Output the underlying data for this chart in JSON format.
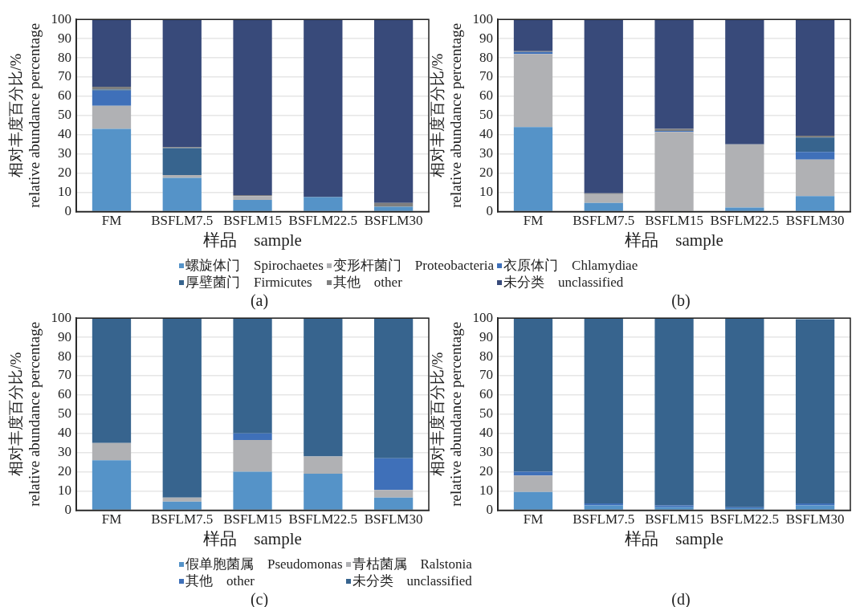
{
  "chart_data": [
    {
      "type": "bar",
      "stacked": true,
      "xlabel": "样品    sample",
      "ylabel": "相对丰度百分比/%\nrelative abundance percentage",
      "categories": [
        "FM",
        "BSFLM7.5",
        "BSFLM15",
        "BSFLM22.5",
        "BSFLM30"
      ],
      "ylim": [
        0,
        100
      ],
      "yticks": [
        0,
        10,
        20,
        30,
        40,
        50,
        60,
        70,
        80,
        90,
        100
      ],
      "grid": "y",
      "legend": "bottom",
      "annotations": [
        "(a)"
      ],
      "series": [
        {
          "name": "螺旋体门    Spirochaetes",
          "color": "#5593c8",
          "values": [
            43,
            17.5,
            6,
            7.5,
            2.5
          ]
        },
        {
          "name": "变形杆菌门    Proteobacteria",
          "color": "#b0b1b4",
          "values": [
            12,
            1.5,
            2,
            null,
            null
          ]
        },
        {
          "name": "衣原体门    Chlamydiae",
          "color": "#3f70b9",
          "values": [
            8,
            0,
            0,
            0,
            0
          ]
        },
        {
          "name": "厚壁菌门    Firmicutes",
          "color": "#37648e",
          "values": [
            0.5,
            14,
            0,
            0,
            0
          ]
        },
        {
          "name": "其他    other",
          "color": "#7f7f7f",
          "values": [
            1.5,
            0.5,
            0.5,
            0,
            2
          ]
        },
        {
          "name": "未分类    unclassified",
          "color": "#384a7a",
          "values": [
            35,
            66.5,
            91.5,
            92.5,
            95.5
          ]
        }
      ]
    },
    {
      "type": "bar",
      "stacked": true,
      "xlabel": "样品    sample",
      "ylabel": "相对丰度百分比/%\nrelative abundance percentage",
      "categories": [
        "FM",
        "BSFLM7.5",
        "BSFLM15",
        "BSFLM22.5",
        "BSFLM30"
      ],
      "ylim": [
        0,
        100
      ],
      "yticks": [
        0,
        10,
        20,
        30,
        40,
        50,
        60,
        70,
        80,
        90,
        100
      ],
      "grid": "y",
      "annotations": [
        "(b)"
      ],
      "series": [
        {
          "color": "#5593c8",
          "values": [
            44,
            4.5,
            0,
            2,
            8
          ]
        },
        {
          "color": "#b0b1b4",
          "values": [
            38,
            4.5,
            41.5,
            33,
            19
          ]
        },
        {
          "color": "#3f70b9",
          "values": [
            1,
            0,
            0.5,
            0,
            4
          ]
        },
        {
          "color": "#37648e",
          "values": [
            0,
            0,
            0,
            0,
            7.5
          ]
        },
        {
          "color": "#7f7f7f",
          "values": [
            0.5,
            0.5,
            1,
            0,
            1
          ]
        },
        {
          "color": "#384a7a",
          "values": [
            16.5,
            90.5,
            57,
            65,
            60.5
          ]
        }
      ]
    },
    {
      "type": "bar",
      "stacked": true,
      "xlabel": "样品    sample",
      "ylabel": "相对丰度百分比/%\nrelative abundance percentage",
      "categories": [
        "FM",
        "BSFLM7.5",
        "BSFLM15",
        "BSFLM22.5",
        "BSFLM30"
      ],
      "ylim": [
        0,
        100
      ],
      "yticks": [
        0,
        10,
        20,
        30,
        40,
        50,
        60,
        70,
        80,
        90,
        100
      ],
      "grid": "y",
      "legend": "bottom",
      "annotations": [
        "(c)"
      ],
      "series": [
        {
          "name": "假单胞菌属    Pseudomonas",
          "color": "#5593c8",
          "values": [
            26,
            4.5,
            20,
            19,
            6.5
          ]
        },
        {
          "name": "青枯菌属    Ralstonia",
          "color": "#b0b1b4",
          "values": [
            9,
            2,
            16.5,
            9,
            4
          ]
        },
        {
          "name": "其他    other",
          "color": "#3f70b9",
          "values": [
            0,
            0,
            3.5,
            0,
            16.5
          ]
        },
        {
          "name": "未分类    unclassified",
          "color": "#37648e",
          "values": [
            65,
            93.5,
            60,
            72,
            73
          ]
        }
      ]
    },
    {
      "type": "bar",
      "stacked": true,
      "xlabel": "样品    sample",
      "ylabel": "相对丰度百分比/%\nrelative abundance percentage",
      "categories": [
        "FM",
        "BSFLM7.5",
        "BSFLM15",
        "BSFLM22.5",
        "BSFLM30"
      ],
      "ylim": [
        0,
        100
      ],
      "yticks": [
        0,
        10,
        20,
        30,
        40,
        50,
        60,
        70,
        80,
        90,
        100
      ],
      "grid": "y",
      "annotations": [
        "(d)"
      ],
      "series": [
        {
          "color": "#5593c8",
          "values": [
            9.5,
            2.5,
            1.5,
            1,
            2.5
          ]
        },
        {
          "color": "#b0b1b4",
          "values": [
            8.5,
            0,
            0,
            0,
            0
          ]
        },
        {
          "color": "#3f70b9",
          "values": [
            2,
            1,
            1,
            0.5,
            1
          ]
        },
        {
          "color": "#37648e",
          "values": [
            80,
            96.5,
            97.5,
            98.5,
            96
          ]
        }
      ]
    }
  ]
}
